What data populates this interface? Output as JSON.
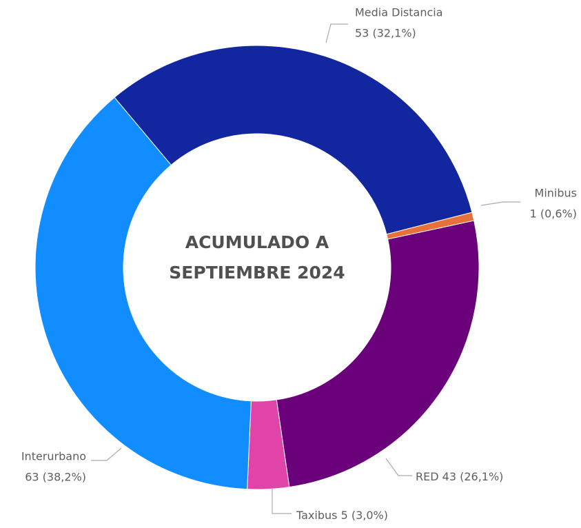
{
  "chart_data": {
    "type": "donut",
    "title": "ACUMULADO A SEPTIEMBRE 2024",
    "categories": [
      "Media Distancia",
      "Minibus",
      "RED",
      "Taxibus",
      "Interurbano"
    ],
    "values": [
      53,
      1,
      43,
      5,
      63
    ],
    "value_labels": [
      "53 (32,1%)",
      "1 (0,6%)",
      "43 (26,1%)",
      "5 (3,0%)",
      "63 (38,2%)"
    ],
    "colors": [
      "#1226a0",
      "#e8703a",
      "#6a007a",
      "#e044a8",
      "#118dff"
    ]
  }
}
